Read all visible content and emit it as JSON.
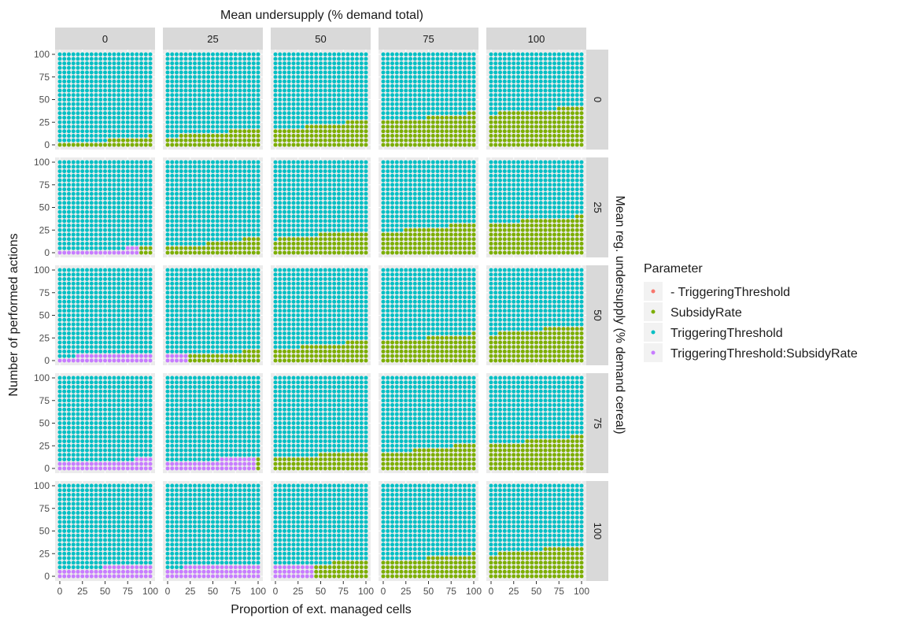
{
  "chart_data": {
    "type": "scatter",
    "subtype": "faceted dot grid (stacked dot columns)",
    "title": "",
    "facet_col_title": "Mean undersupply (% demand total)",
    "facet_row_title": "Mean reg. undersupply (% demand cereal)",
    "xlabel": "Proportion of ext. managed cells",
    "ylabel": "Number of performed actions",
    "col_facets": [
      "0",
      "25",
      "50",
      "75",
      "100"
    ],
    "row_facets": [
      "0",
      "25",
      "50",
      "75",
      "100"
    ],
    "xlim": [
      0,
      100
    ],
    "ylim": [
      0,
      100
    ],
    "x_ticks": [
      0,
      25,
      50,
      75,
      100
    ],
    "y_ticks": [
      0,
      25,
      50,
      75,
      100
    ],
    "x_points": [
      0,
      5,
      10,
      15,
      20,
      25,
      30,
      35,
      40,
      45,
      50,
      55,
      60,
      65,
      70,
      75,
      80,
      85,
      90,
      95,
      100
    ],
    "y_points": [
      0,
      5,
      10,
      15,
      20,
      25,
      30,
      35,
      40,
      45,
      50,
      55,
      60,
      65,
      70,
      75,
      80,
      85,
      90,
      95,
      100
    ],
    "grid": true,
    "legend": {
      "title": "Parameter",
      "position": "right",
      "entries": [
        {
          "key": "neg_trig",
          "label": "- TriggeringThreshold",
          "color": "#F8766D"
        },
        {
          "key": "subsidy",
          "label": "SubsidyRate",
          "color": "#7CAE00"
        },
        {
          "key": "trig",
          "label": "TriggeringThreshold",
          "color": "#00BFC4"
        },
        {
          "key": "inter",
          "label": "TriggeringThreshold:SubsidyRate",
          "color": "#C77CFF"
        }
      ]
    },
    "panels": [
      {
        "row": "0",
        "col": "0",
        "segments": [
          {
            "key": "neg_trig",
            "x_from": 0,
            "x_to": 100,
            "y_max": [
              0,
              0,
              0,
              0,
              0,
              0,
              0,
              0,
              0,
              0,
              0,
              0,
              0,
              0,
              0,
              0,
              0,
              0,
              0,
              0,
              0
            ]
          },
          {
            "key": "subsidy",
            "x_from": 0,
            "x_to": 100,
            "y_max": [
              0,
              0,
              0,
              0,
              0,
              0,
              0,
              0,
              0,
              0,
              0,
              5,
              5,
              5,
              5,
              5,
              5,
              5,
              5,
              5,
              10
            ]
          }
        ]
      },
      {
        "row": "0",
        "col": "25",
        "segments": [
          {
            "key": "subsidy",
            "x_from": 0,
            "x_to": 100,
            "y_max": [
              5,
              5,
              5,
              10,
              10,
              10,
              10,
              10,
              10,
              10,
              10,
              10,
              10,
              10,
              15,
              15,
              15,
              15,
              15,
              15,
              15
            ]
          }
        ]
      },
      {
        "row": "0",
        "col": "50",
        "segments": [
          {
            "key": "subsidy",
            "x_from": 0,
            "x_to": 100,
            "y_max": [
              15,
              15,
              15,
              15,
              15,
              15,
              15,
              20,
              20,
              20,
              20,
              20,
              20,
              20,
              20,
              20,
              25,
              25,
              25,
              25,
              25
            ]
          }
        ]
      },
      {
        "row": "0",
        "col": "75",
        "segments": [
          {
            "key": "subsidy",
            "x_from": 0,
            "x_to": 100,
            "y_max": [
              25,
              25,
              25,
              25,
              25,
              25,
              25,
              25,
              25,
              25,
              30,
              30,
              30,
              30,
              30,
              30,
              30,
              30,
              30,
              35,
              35
            ]
          }
        ]
      },
      {
        "row": "0",
        "col": "100",
        "segments": [
          {
            "key": "subsidy",
            "x_from": 0,
            "x_to": 100,
            "y_max": [
              30,
              30,
              35,
              35,
              35,
              35,
              35,
              35,
              35,
              35,
              35,
              35,
              35,
              35,
              35,
              40,
              40,
              40,
              40,
              40,
              40
            ]
          }
        ]
      },
      {
        "row": "25",
        "col": "0",
        "segments": [
          {
            "key": "inter",
            "x_from": 0,
            "x_to": 85,
            "y_max": [
              0,
              0,
              0,
              0,
              0,
              0,
              0,
              0,
              0,
              0,
              0,
              0,
              0,
              0,
              0,
              5,
              5,
              5
            ]
          },
          {
            "key": "subsidy",
            "x_from": 90,
            "x_to": 100,
            "y_max": [
              5,
              5,
              5
            ]
          }
        ]
      },
      {
        "row": "25",
        "col": "25",
        "segments": [
          {
            "key": "subsidy",
            "x_from": 0,
            "x_to": 100,
            "y_max": [
              5,
              5,
              5,
              5,
              5,
              5,
              5,
              5,
              5,
              10,
              10,
              10,
              10,
              10,
              10,
              10,
              10,
              15,
              15,
              15,
              15
            ]
          }
        ]
      },
      {
        "row": "25",
        "col": "50",
        "segments": [
          {
            "key": "subsidy",
            "x_from": 0,
            "x_to": 100,
            "y_max": [
              10,
              15,
              15,
              15,
              15,
              15,
              15,
              15,
              15,
              15,
              20,
              20,
              20,
              20,
              20,
              20,
              20,
              20,
              20,
              20,
              20
            ]
          }
        ]
      },
      {
        "row": "25",
        "col": "75",
        "segments": [
          {
            "key": "subsidy",
            "x_from": 0,
            "x_to": 100,
            "y_max": [
              20,
              20,
              20,
              20,
              20,
              25,
              25,
              25,
              25,
              25,
              25,
              25,
              25,
              25,
              25,
              30,
              30,
              30,
              30,
              30,
              30
            ]
          }
        ]
      },
      {
        "row": "25",
        "col": "100",
        "segments": [
          {
            "key": "subsidy",
            "x_from": 0,
            "x_to": 100,
            "y_max": [
              30,
              30,
              30,
              30,
              30,
              30,
              30,
              35,
              35,
              35,
              35,
              35,
              35,
              35,
              35,
              35,
              35,
              35,
              35,
              40,
              40
            ]
          }
        ]
      },
      {
        "row": "50",
        "col": "0",
        "segments": [
          {
            "key": "inter",
            "x_from": 0,
            "x_to": 100,
            "y_max": [
              0,
              0,
              0,
              0,
              5,
              5,
              5,
              5,
              5,
              5,
              5,
              5,
              5,
              5,
              5,
              5,
              5,
              5,
              5,
              5,
              5
            ]
          }
        ]
      },
      {
        "row": "50",
        "col": "25",
        "segments": [
          {
            "key": "inter",
            "x_from": 0,
            "x_to": 20,
            "y_max": [
              5,
              5,
              5,
              5,
              5
            ]
          },
          {
            "key": "subsidy",
            "x_from": 25,
            "x_to": 100,
            "y_max": [
              5,
              5,
              5,
              5,
              5,
              5,
              5,
              5,
              5,
              5,
              5,
              5,
              10,
              10,
              10,
              10
            ]
          }
        ]
      },
      {
        "row": "50",
        "col": "50",
        "segments": [
          {
            "key": "subsidy",
            "x_from": 0,
            "x_to": 100,
            "y_max": [
              10,
              10,
              10,
              10,
              10,
              10,
              15,
              15,
              15,
              15,
              15,
              15,
              15,
              15,
              15,
              15,
              20,
              20,
              20,
              20,
              20
            ]
          }
        ]
      },
      {
        "row": "50",
        "col": "75",
        "segments": [
          {
            "key": "subsidy",
            "x_from": 0,
            "x_to": 100,
            "y_max": [
              20,
              20,
              20,
              20,
              20,
              20,
              20,
              20,
              20,
              20,
              25,
              25,
              25,
              25,
              25,
              25,
              25,
              25,
              25,
              25,
              30
            ]
          }
        ]
      },
      {
        "row": "50",
        "col": "100",
        "segments": [
          {
            "key": "subsidy",
            "x_from": 0,
            "x_to": 100,
            "y_max": [
              25,
              25,
              30,
              30,
              30,
              30,
              30,
              30,
              30,
              30,
              30,
              30,
              35,
              35,
              35,
              35,
              35,
              35,
              35,
              35,
              35
            ]
          }
        ]
      },
      {
        "row": "75",
        "col": "0",
        "segments": [
          {
            "key": "inter",
            "x_from": 0,
            "x_to": 100,
            "y_max": [
              5,
              5,
              5,
              5,
              5,
              5,
              5,
              5,
              5,
              5,
              5,
              5,
              5,
              5,
              5,
              5,
              5,
              10,
              10,
              10,
              10
            ]
          }
        ]
      },
      {
        "row": "75",
        "col": "25",
        "segments": [
          {
            "key": "inter",
            "x_from": 0,
            "x_to": 95,
            "y_max": [
              5,
              5,
              5,
              5,
              5,
              5,
              5,
              5,
              5,
              5,
              5,
              5,
              10,
              10,
              10,
              10,
              10,
              10,
              10,
              10
            ]
          },
          {
            "key": "subsidy",
            "x_from": 100,
            "x_to": 100,
            "y_max": [
              10
            ]
          }
        ]
      },
      {
        "row": "75",
        "col": "50",
        "segments": [
          {
            "key": "subsidy",
            "x_from": 0,
            "x_to": 100,
            "y_max": [
              10,
              10,
              10,
              10,
              10,
              10,
              10,
              10,
              10,
              10,
              15,
              15,
              15,
              15,
              15,
              15,
              15,
              15,
              15,
              15,
              15
            ]
          }
        ]
      },
      {
        "row": "75",
        "col": "75",
        "segments": [
          {
            "key": "subsidy",
            "x_from": 0,
            "x_to": 100,
            "y_max": [
              15,
              15,
              15,
              15,
              15,
              15,
              15,
              20,
              20,
              20,
              20,
              20,
              20,
              20,
              20,
              20,
              25,
              25,
              25,
              25,
              25
            ]
          }
        ]
      },
      {
        "row": "75",
        "col": "100",
        "segments": [
          {
            "key": "subsidy",
            "x_from": 0,
            "x_to": 100,
            "y_max": [
              25,
              25,
              25,
              25,
              25,
              25,
              25,
              25,
              30,
              30,
              30,
              30,
              30,
              30,
              30,
              30,
              30,
              30,
              35,
              35,
              35
            ]
          }
        ]
      },
      {
        "row": "100",
        "col": "0",
        "segments": [
          {
            "key": "inter",
            "x_from": 0,
            "x_to": 100,
            "y_max": [
              5,
              5,
              5,
              5,
              5,
              5,
              5,
              5,
              5,
              5,
              10,
              10,
              10,
              10,
              10,
              10,
              10,
              10,
              10,
              10,
              10
            ]
          }
        ]
      },
      {
        "row": "100",
        "col": "25",
        "segments": [
          {
            "key": "inter",
            "x_from": 0,
            "x_to": 100,
            "y_max": [
              5,
              5,
              5,
              5,
              10,
              10,
              10,
              10,
              10,
              10,
              10,
              10,
              10,
              10,
              10,
              10,
              10,
              10,
              10,
              10,
              10
            ]
          }
        ]
      },
      {
        "row": "100",
        "col": "50",
        "segments": [
          {
            "key": "inter",
            "x_from": 0,
            "x_to": 40,
            "y_max": [
              10,
              10,
              10,
              10,
              10,
              10,
              10,
              10,
              10
            ]
          },
          {
            "key": "subsidy",
            "x_from": 45,
            "x_to": 100,
            "y_max": [
              10,
              10,
              10,
              10,
              15,
              15,
              15,
              15,
              15,
              15,
              15,
              15
            ]
          }
        ]
      },
      {
        "row": "100",
        "col": "75",
        "segments": [
          {
            "key": "subsidy",
            "x_from": 0,
            "x_to": 100,
            "y_max": [
              15,
              15,
              15,
              15,
              15,
              15,
              15,
              15,
              15,
              15,
              20,
              20,
              20,
              20,
              20,
              20,
              20,
              20,
              20,
              20,
              25
            ]
          }
        ]
      },
      {
        "row": "100",
        "col": "100",
        "segments": [
          {
            "key": "subsidy",
            "x_from": 0,
            "x_to": 100,
            "y_max": [
              20,
              20,
              25,
              25,
              25,
              25,
              25,
              25,
              25,
              25,
              25,
              25,
              30,
              30,
              30,
              30,
              30,
              30,
              30,
              30,
              30
            ]
          }
        ]
      }
    ]
  }
}
